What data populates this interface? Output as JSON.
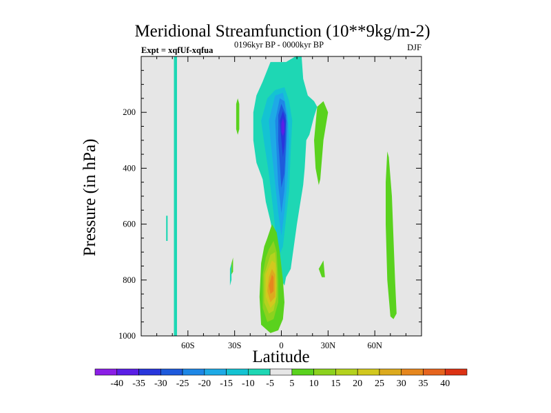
{
  "chart_data": {
    "type": "heatmap",
    "title": "Meridional Streamfunction (10**9kg/m-2)",
    "subtitle": "0196kyr BP - 0000kyr BP",
    "left_label": "Expt = xqfUf-xqfua",
    "right_label": "DJF",
    "xlabel": "Latitude",
    "ylabel": "Pressure (in hPa)",
    "xlim": [
      -90,
      90
    ],
    "ylim": [
      1000,
      0
    ],
    "x_ticks": [
      {
        "value": -60,
        "label": "60S"
      },
      {
        "value": -30,
        "label": "30S"
      },
      {
        "value": 0,
        "label": "0"
      },
      {
        "value": 30,
        "label": "30N"
      },
      {
        "value": 60,
        "label": "60N"
      }
    ],
    "y_ticks": [
      {
        "value": 200,
        "label": "200"
      },
      {
        "value": 400,
        "label": "400"
      },
      {
        "value": 600,
        "label": "600"
      },
      {
        "value": 800,
        "label": "800"
      },
      {
        "value": 1000,
        "label": "1000"
      }
    ],
    "background_color": "#e6e6e6",
    "colorbar": {
      "labels": [
        "-40",
        "-35",
        "-30",
        "-25",
        "-20",
        "-15",
        "-10",
        "-5",
        "5",
        "10",
        "15",
        "20",
        "25",
        "30",
        "35",
        "40"
      ],
      "colors": [
        "#8b1ee6",
        "#5a1ee6",
        "#2836dc",
        "#1e5adc",
        "#1e87e6",
        "#1eaae6",
        "#14c3d2",
        "#1ed7b4",
        "#e6e6e6",
        "#5ad21e",
        "#8cd21e",
        "#b4d21e",
        "#d2c81e",
        "#dcaa1e",
        "#e6871e",
        "#e6641e",
        "#dc3214"
      ]
    },
    "regions": [
      {
        "name": "southern-polar-column",
        "value": -7.5,
        "color": "#1ed7b4",
        "polygon": [
          [
            -69,
            1000
          ],
          [
            -69,
            0
          ],
          [
            -67,
            0
          ],
          [
            -67,
            1000
          ]
        ]
      },
      {
        "name": "antarctic-shallow-strip",
        "value": -7.5,
        "color": "#1ed7b4",
        "polygon": [
          [
            -74,
            660
          ],
          [
            -74,
            570
          ],
          [
            -73,
            570
          ],
          [
            -73,
            660
          ]
        ]
      },
      {
        "name": "southern-upper-green-blob",
        "value": 7.5,
        "color": "#5ad21e",
        "polygon": [
          [
            -29,
            170
          ],
          [
            -28,
            150
          ],
          [
            -27,
            170
          ],
          [
            -27,
            260
          ],
          [
            -28,
            280
          ],
          [
            -29,
            260
          ]
        ]
      },
      {
        "name": "main-negative-cell",
        "value": -7.5,
        "color": "#1ed7b4",
        "polygon": [
          [
            -18,
            200
          ],
          [
            -16,
            140
          ],
          [
            -12,
            90
          ],
          [
            -7,
            20
          ],
          [
            3,
            20
          ],
          [
            9,
            0
          ],
          [
            13,
            0
          ],
          [
            14,
            80
          ],
          [
            17,
            140
          ],
          [
            21,
            160
          ],
          [
            23,
            180
          ],
          [
            21,
            215
          ],
          [
            18,
            280
          ],
          [
            16,
            300
          ],
          [
            15,
            400
          ],
          [
            14,
            460
          ],
          [
            12,
            530
          ],
          [
            10,
            600
          ],
          [
            8,
            680
          ],
          [
            6,
            760
          ],
          [
            3,
            790
          ],
          [
            2,
            820
          ],
          [
            -1,
            790
          ],
          [
            -3,
            700
          ],
          [
            -7,
            590
          ],
          [
            -10,
            520
          ],
          [
            -12,
            440
          ],
          [
            -16,
            380
          ],
          [
            -18,
            300
          ]
        ]
      },
      {
        "name": "negative-cell-10",
        "value": -12.5,
        "color": "#14c3d2",
        "polygon": [
          [
            -13,
            230
          ],
          [
            -9,
            150
          ],
          [
            -4,
            120
          ],
          [
            2,
            110
          ],
          [
            5,
            160
          ],
          [
            7,
            230
          ],
          [
            6,
            340
          ],
          [
            5,
            480
          ],
          [
            3,
            580
          ],
          [
            1,
            680
          ],
          [
            -2,
            720
          ],
          [
            -5,
            560
          ],
          [
            -8,
            420
          ],
          [
            -11,
            310
          ]
        ]
      },
      {
        "name": "negative-cell-15",
        "value": -17.5,
        "color": "#1eaae6",
        "polygon": [
          [
            -8,
            230
          ],
          [
            -4,
            140
          ],
          [
            1,
            130
          ],
          [
            4,
            200
          ],
          [
            5,
            300
          ],
          [
            4,
            440
          ],
          [
            2,
            560
          ],
          [
            0,
            640
          ],
          [
            -2,
            560
          ],
          [
            -5,
            400
          ],
          [
            -7,
            300
          ]
        ]
      },
      {
        "name": "negative-cell-20",
        "value": -22.5,
        "color": "#1e87e6",
        "polygon": [
          [
            -4,
            230
          ],
          [
            -1,
            150
          ],
          [
            2,
            160
          ],
          [
            4,
            240
          ],
          [
            3,
            360
          ],
          [
            2,
            480
          ],
          [
            0,
            560
          ],
          [
            -2,
            460
          ],
          [
            -3,
            350
          ]
        ]
      },
      {
        "name": "negative-cell-25",
        "value": -27.5,
        "color": "#1e5adc",
        "polygon": [
          [
            -2,
            210
          ],
          [
            0,
            170
          ],
          [
            3,
            210
          ],
          [
            3,
            300
          ],
          [
            2,
            420
          ],
          [
            0,
            470
          ],
          [
            -1,
            380
          ],
          [
            -2,
            300
          ]
        ]
      },
      {
        "name": "negative-cell-30",
        "value": -32.5,
        "color": "#2836dc",
        "polygon": [
          [
            -1,
            230
          ],
          [
            1,
            195
          ],
          [
            3,
            230
          ],
          [
            2,
            320
          ],
          [
            1,
            360
          ],
          [
            0,
            300
          ]
        ]
      },
      {
        "name": "negative-cell-35",
        "value": -37.5,
        "color": "#5a1ee6",
        "polygon": [
          [
            0,
            240
          ],
          [
            1,
            220
          ],
          [
            2,
            240
          ],
          [
            2,
            270
          ],
          [
            1,
            285
          ],
          [
            0,
            270
          ]
        ]
      },
      {
        "name": "positive-cell-5",
        "value": 7.5,
        "color": "#5ad21e",
        "polygon": [
          [
            -9,
            650
          ],
          [
            -6,
            600
          ],
          [
            -3,
            630
          ],
          [
            -1,
            700
          ],
          [
            1,
            800
          ],
          [
            2,
            880
          ],
          [
            1,
            940
          ],
          [
            -2,
            980
          ],
          [
            -7,
            990
          ],
          [
            -13,
            960
          ],
          [
            -14,
            860
          ],
          [
            -13,
            740
          ],
          [
            -11,
            680
          ]
        ]
      },
      {
        "name": "positive-cell-10",
        "value": 12.5,
        "color": "#8cd21e",
        "polygon": [
          [
            -8,
            690
          ],
          [
            -5,
            660
          ],
          [
            -3,
            700
          ],
          [
            -2,
            800
          ],
          [
            -2,
            880
          ],
          [
            -5,
            940
          ],
          [
            -9,
            950
          ],
          [
            -12,
            900
          ],
          [
            -12,
            780
          ],
          [
            -10,
            720
          ]
        ]
      },
      {
        "name": "positive-cell-15",
        "value": 17.5,
        "color": "#b4d21e",
        "polygon": [
          [
            -7,
            710
          ],
          [
            -4,
            700
          ],
          [
            -3,
            760
          ],
          [
            -3,
            860
          ],
          [
            -5,
            910
          ],
          [
            -8,
            920
          ],
          [
            -11,
            880
          ],
          [
            -11,
            780
          ]
        ]
      },
      {
        "name": "positive-cell-20",
        "value": 22.5,
        "color": "#d2c81e",
        "polygon": [
          [
            -6,
            730
          ],
          [
            -4,
            740
          ],
          [
            -3,
            820
          ],
          [
            -4,
            880
          ],
          [
            -7,
            900
          ],
          [
            -10,
            860
          ],
          [
            -10,
            780
          ]
        ]
      },
      {
        "name": "positive-cell-25",
        "value": 27.5,
        "color": "#dcaa1e",
        "polygon": [
          [
            -6,
            760
          ],
          [
            -4,
            780
          ],
          [
            -4,
            860
          ],
          [
            -7,
            880
          ],
          [
            -9,
            840
          ],
          [
            -8,
            790
          ]
        ]
      },
      {
        "name": "positive-cell-30",
        "value": 32.5,
        "color": "#e6871e",
        "polygon": [
          [
            -6,
            780
          ],
          [
            -5,
            790
          ],
          [
            -5,
            840
          ],
          [
            -7,
            850
          ],
          [
            -8,
            820
          ]
        ]
      },
      {
        "name": "mid-tropic-green-patch",
        "value": 7.5,
        "color": "#5ad21e",
        "polygon": [
          [
            -32,
            740
          ],
          [
            -31,
            720
          ],
          [
            -31,
            770
          ],
          [
            -32,
            780
          ]
        ]
      },
      {
        "name": "mid-tropic-teal-patch",
        "value": -7.5,
        "color": "#1ed7b4",
        "polygon": [
          [
            -33,
            760
          ],
          [
            -32,
            740
          ],
          [
            -32,
            800
          ],
          [
            -33,
            820
          ]
        ]
      },
      {
        "name": "northern-upper-green-blob",
        "value": 7.5,
        "color": "#5ad21e",
        "polygon": [
          [
            23,
            180
          ],
          [
            27,
            160
          ],
          [
            30,
            200
          ],
          [
            27,
            300
          ],
          [
            25,
            440
          ],
          [
            24,
            460
          ],
          [
            22,
            400
          ],
          [
            21,
            300
          ]
        ]
      },
      {
        "name": "northern-low-green-patch",
        "value": 7.5,
        "color": "#5ad21e",
        "polygon": [
          [
            24,
            760
          ],
          [
            27,
            730
          ],
          [
            28,
            790
          ],
          [
            26,
            790
          ]
        ]
      },
      {
        "name": "northern-polar-green-band",
        "value": 7.5,
        "color": "#5ad21e",
        "polygon": [
          [
            68,
            340
          ],
          [
            69,
            360
          ],
          [
            71,
            500
          ],
          [
            73,
            800
          ],
          [
            74,
            920
          ],
          [
            72,
            940
          ],
          [
            70,
            930
          ],
          [
            68,
            800
          ],
          [
            67,
            600
          ],
          [
            67,
            450
          ]
        ]
      }
    ]
  }
}
